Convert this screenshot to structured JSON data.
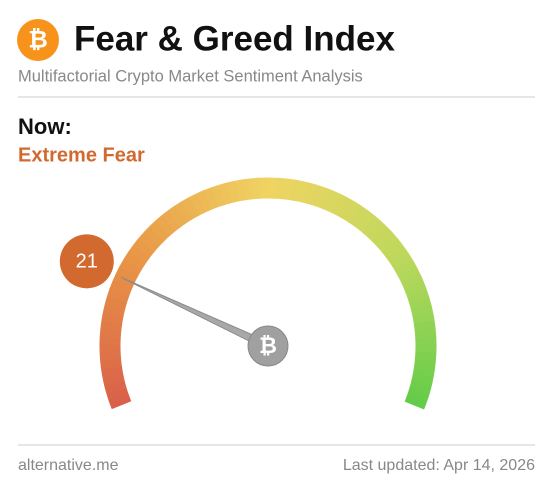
{
  "chart_data": {
    "type": "gauge",
    "title": "Fear & Greed Index",
    "subtitle": "Multifactorial Crypto Market Sentiment Analysis",
    "now_label": "Now:",
    "classification": "Extreme Fear",
    "value": 21,
    "ylim": [
      0,
      100
    ],
    "source": "alternative.me",
    "updated": "Last updated: Apr 14, 2026",
    "color": "#d2692e"
  }
}
